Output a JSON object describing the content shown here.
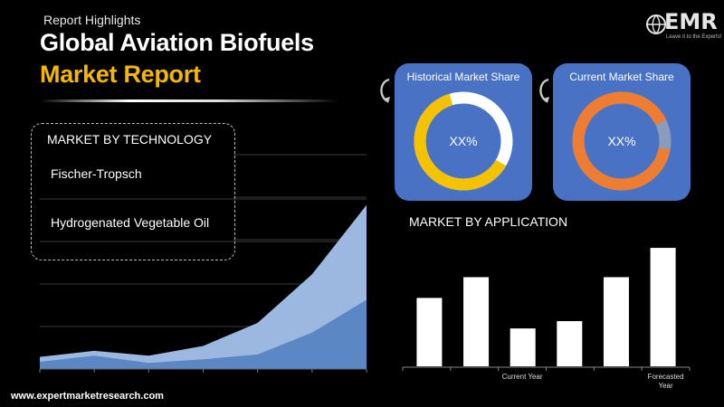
{
  "header": {
    "kicker": "Report Highlights",
    "title_line1": "Global Aviation Biofuels",
    "title_line2": "Market Report"
  },
  "logo": {
    "text": "EMR",
    "tagline": "Leave it to the Experts!"
  },
  "technology": {
    "heading": "MARKET BY TECHNOLOGY",
    "items": [
      "Fischer-Tropsch",
      "Hydrogenated Vegetable Oil"
    ]
  },
  "donuts": [
    {
      "title": "Historical Market Share",
      "value_label": "XX%",
      "colors": {
        "main": "#f5c200",
        "rest": "#ffffff"
      },
      "main_share": 0.62
    },
    {
      "title": "Current Market Share",
      "value_label": "XX%",
      "colors": {
        "main": "#ee7d31",
        "rest": "#8b9bbb"
      },
      "main_share": 0.9
    }
  ],
  "application": {
    "heading": "MARKET BY APPLICATION"
  },
  "colors": {
    "accent_yellow": "#f5b800",
    "card_blue": "#4a72c4",
    "area_light": "#9db8e0",
    "area_dark": "#5b87c5",
    "bar": "#ffffff"
  },
  "chart_data": [
    {
      "type": "area",
      "x": [
        1,
        2,
        3,
        4,
        5,
        6,
        7
      ],
      "series": [
        {
          "values": [
            10,
            15,
            11,
            19,
            38,
            78,
            135
          ]
        },
        {
          "values": [
            6,
            11,
            5,
            8,
            12,
            30,
            57
          ]
        }
      ],
      "ylim": [
        0,
        140
      ],
      "grid": true
    },
    {
      "type": "bar",
      "categories": [
        "",
        "",
        "Current Year",
        "",
        "",
        "Forecasted Year"
      ],
      "values": [
        56,
        73,
        31,
        37,
        73,
        97
      ],
      "ylim": [
        0,
        100
      ],
      "grid": false
    }
  ],
  "website": "www.expertmarketresearch.com"
}
